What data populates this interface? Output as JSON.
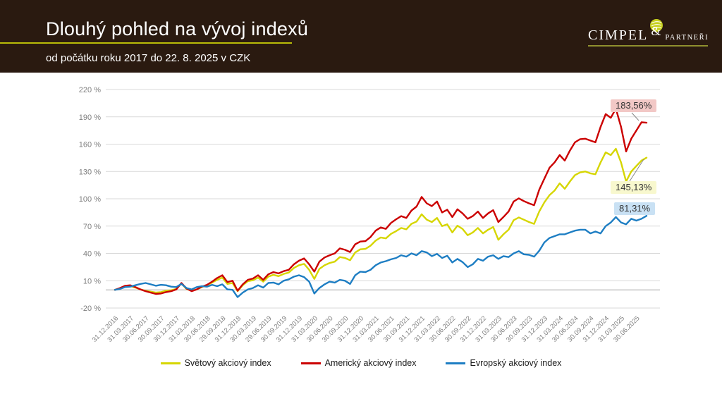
{
  "header": {
    "title": "Dlouhý pohled na vývoj indexů",
    "subtitle": "od počátku roku 2017 do 22. 8. 2025 v CZK",
    "logo": {
      "name": "CIMPEL",
      "amp": "&",
      "suffix": "PARTNEŘI"
    }
  },
  "colors": {
    "header_bg": "#2a1a10",
    "accent_rule": "#b9bc08",
    "grid": "#d9d9d9",
    "zero_axis": "#a6a6a6",
    "tick_text": "#7f7f7f"
  },
  "chart_data": {
    "type": "line",
    "title": "",
    "x_unit": "monthly values since 31.12.2016, last point 22.8.2025",
    "ylim": [
      -20,
      220
    ],
    "grid": true,
    "legend_position": "bottom",
    "y_ticks": [
      {
        "label": "220 %",
        "value": 220
      },
      {
        "label": "190 %",
        "value": 190
      },
      {
        "label": "160 %",
        "value": 160
      },
      {
        "label": "130 %",
        "value": 130
      },
      {
        "label": "100 %",
        "value": 100
      },
      {
        "label": "70 %",
        "value": 70
      },
      {
        "label": "40 %",
        "value": 40
      },
      {
        "label": "10 %",
        "value": 10
      },
      {
        "label": "-20 %",
        "value": -20
      }
    ],
    "x_tick_labels": [
      "31.12.2016",
      "31.03.2017",
      "30.06.2017",
      "30.09.2017",
      "30.12.2017",
      "31.03.2018",
      "30.06.2018",
      "29.09.2018",
      "31.12.2018",
      "30.03.2019",
      "29.06.2019",
      "30.09.2019",
      "31.12.2019",
      "31.03.2020",
      "30.06.2020",
      "30.09.2020",
      "31.12.2020",
      "31.03.2021",
      "30.06.2021",
      "30.09.2021",
      "31.12.2021",
      "31.03.2022",
      "30.06.2022",
      "30.09.2022",
      "31.12.2022",
      "31.03.2023",
      "30.06.2023",
      "30.09.2023",
      "31.12.2023",
      "31.03.2024",
      "30.06.2024",
      "30.09.2024",
      "31.12.2024",
      "31.03.2025",
      "30.06.2025"
    ],
    "series": [
      {
        "name": "Světový akciový index",
        "color": "#d6d600",
        "end_label": "145,13%",
        "end_label_bg": "#f8f8ce",
        "end_value": 145.13,
        "values": [
          0,
          1.5,
          3.5,
          4,
          2.5,
          0.5,
          -1,
          -2,
          -3,
          -2.5,
          -1,
          -0.5,
          1,
          7,
          1,
          -1,
          0.5,
          3,
          5,
          8,
          11,
          13.5,
          6.5,
          7.5,
          -1.5,
          5,
          9.5,
          10.5,
          13.5,
          9,
          14.5,
          16.5,
          15,
          17.5,
          19,
          24,
          27,
          28.5,
          22,
          12,
          23,
          27,
          29.5,
          31,
          36,
          35,
          32.5,
          41,
          44.5,
          45,
          48.5,
          54,
          57.5,
          56.5,
          61.5,
          64.5,
          68,
          66.5,
          72.5,
          75,
          83,
          77,
          74.5,
          79,
          70,
          72,
          63,
          70.5,
          67,
          60,
          63,
          68,
          62,
          66,
          69,
          55,
          61,
          66,
          76.5,
          79.5,
          77,
          74.5,
          72.5,
          86,
          96,
          104,
          109,
          117,
          111,
          119,
          126,
          129,
          130,
          128,
          127,
          140,
          151,
          148,
          155,
          140,
          119,
          130,
          136,
          142,
          145.13
        ]
      },
      {
        "name": "Americký akciový index",
        "color": "#cb0000",
        "end_label": "183,56%",
        "end_label_bg": "#f2c8c6",
        "end_value": 183.56,
        "values": [
          0,
          2,
          4.5,
          5,
          3,
          0.5,
          -1.5,
          -3,
          -4.5,
          -4,
          -2.5,
          -1.5,
          0.5,
          7.5,
          1.5,
          -1.5,
          0.5,
          3.5,
          5.5,
          9,
          13,
          16,
          8.5,
          10,
          -1,
          6,
          11,
          12.5,
          16,
          11,
          17,
          19.5,
          18,
          20.5,
          22,
          28,
          32,
          34.5,
          28,
          20,
          31,
          35.5,
          38,
          40,
          45.5,
          44,
          41.5,
          50,
          53,
          53.5,
          58,
          65,
          68.5,
          67,
          73.5,
          77.5,
          81,
          79,
          87,
          91.5,
          102,
          95,
          92,
          97,
          85,
          88,
          80,
          88.5,
          84,
          78,
          81,
          86,
          79,
          84,
          87.5,
          74.5,
          80,
          86,
          97,
          100.5,
          97.5,
          95,
          93,
          110,
          122,
          134,
          140,
          148,
          142,
          153,
          162,
          165.5,
          166,
          164,
          162,
          179,
          193,
          189,
          199,
          179,
          152,
          166,
          175,
          184,
          183.56
        ]
      },
      {
        "name": "Evropský akciový index",
        "color": "#1e7ec3",
        "end_label": "81,31%",
        "end_label_bg": "#c9e1f4",
        "end_value": 81.31,
        "values": [
          0,
          1,
          3,
          3.5,
          5,
          6.5,
          7.5,
          6,
          4.5,
          5.5,
          5,
          3.5,
          3,
          6.5,
          2,
          0.5,
          3,
          4,
          3.5,
          5.5,
          4,
          6,
          0.5,
          0,
          -8,
          -3,
          0.5,
          2,
          5,
          2.5,
          7.5,
          8,
          6,
          10,
          11.5,
          14.5,
          16,
          14,
          9,
          -4,
          2,
          6,
          9,
          8,
          11,
          10,
          6.5,
          16,
          20,
          19.5,
          22,
          27,
          30,
          31.5,
          33.5,
          35,
          38,
          36.5,
          40,
          38,
          42.5,
          41,
          37,
          39.5,
          35,
          37.5,
          30,
          34,
          30.5,
          25,
          28,
          34,
          32,
          36.5,
          38,
          34,
          37,
          36,
          40,
          42.5,
          39,
          38.5,
          36.5,
          43,
          52,
          57,
          59,
          61,
          61,
          63,
          65,
          66,
          66,
          62,
          64,
          62,
          70,
          74,
          80,
          74,
          72,
          78,
          76,
          78,
          81.31
        ]
      }
    ]
  }
}
